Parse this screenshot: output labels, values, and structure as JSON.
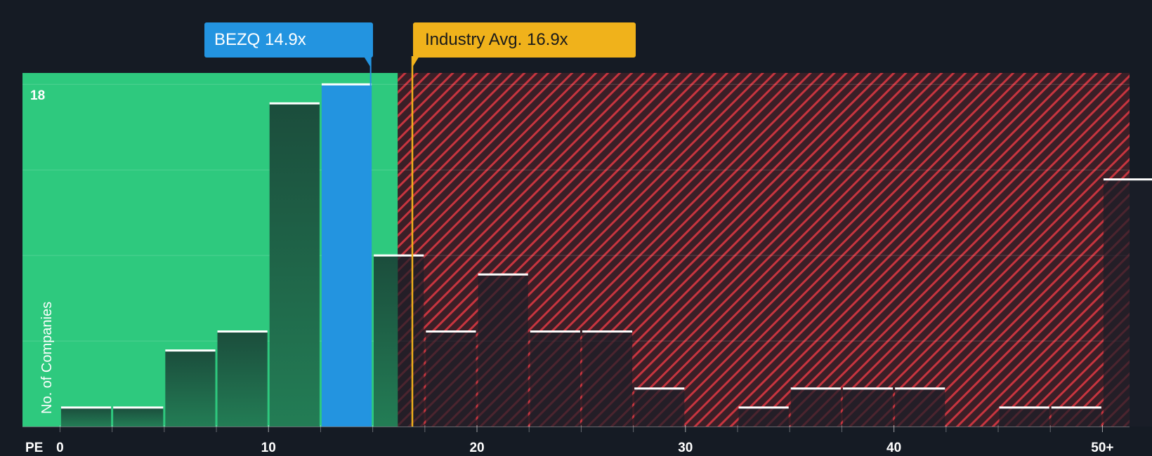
{
  "chart_data": {
    "type": "bar",
    "title": "",
    "xlabel": "PE",
    "ylabel": "No. of Companies",
    "x_ticks": [
      {
        "value": 0,
        "label": "0"
      },
      {
        "value": 10,
        "label": "10"
      },
      {
        "value": 20,
        "label": "20"
      },
      {
        "value": 30,
        "label": "30"
      },
      {
        "value": 40,
        "label": "40"
      },
      {
        "value": 50,
        "label": "50+"
      }
    ],
    "y_max_label": "18",
    "xlim": [
      -1.8,
      51.3
    ],
    "ylim": [
      0,
      18.6
    ],
    "bin_width": 2.5,
    "bins": [
      {
        "start": 0,
        "count": 1
      },
      {
        "start": 2.5,
        "count": 1
      },
      {
        "start": 5,
        "count": 4
      },
      {
        "start": 7.5,
        "count": 5
      },
      {
        "start": 10,
        "count": 17
      },
      {
        "start": 12.5,
        "count": 18,
        "highlight": true
      },
      {
        "start": 15,
        "count": 9
      },
      {
        "start": 17.5,
        "count": 5
      },
      {
        "start": 20,
        "count": 8
      },
      {
        "start": 22.5,
        "count": 5
      },
      {
        "start": 25,
        "count": 5
      },
      {
        "start": 27.5,
        "count": 2
      },
      {
        "start": 30,
        "count": 0
      },
      {
        "start": 32.5,
        "count": 1
      },
      {
        "start": 35,
        "count": 2
      },
      {
        "start": 37.5,
        "count": 2
      },
      {
        "start": 40,
        "count": 2
      },
      {
        "start": 42.5,
        "count": 0
      },
      {
        "start": 45,
        "count": 1
      },
      {
        "start": 47.5,
        "count": 1
      },
      {
        "start": 50,
        "count": 13
      }
    ],
    "company": {
      "ticker": "BEZQ",
      "value": 14.9,
      "label": "BEZQ 14.9x"
    },
    "industry": {
      "value": 16.9,
      "label": "Industry Avg. 16.9x"
    },
    "undervalued_until": 16.2,
    "colors": {
      "background": "#151b24",
      "green_zone": "#2ec97e",
      "red_zone": "#3a1f27",
      "hatch": "#c7353f",
      "bar_green": "#1e5c45",
      "bar_dark": "#232630",
      "company": "#2394e0",
      "industry": "#f0b21b",
      "cap": "#ffffff"
    }
  }
}
